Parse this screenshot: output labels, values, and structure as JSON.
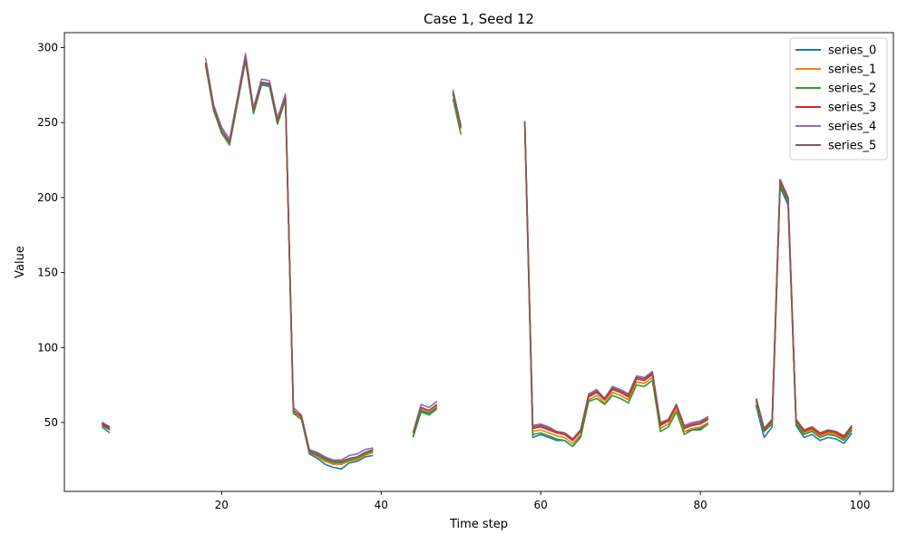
{
  "chart_data": {
    "type": "line",
    "title": "Case 1, Seed 12",
    "xlabel": "Time step",
    "ylabel": "Value",
    "xlim": [
      0.3,
      104.2
    ],
    "ylim": [
      4,
      310
    ],
    "xticks": [
      20,
      40,
      60,
      80,
      100
    ],
    "yticks": [
      50,
      100,
      150,
      200,
      250,
      300
    ],
    "grid": false,
    "legend_position": "top-right",
    "colors": [
      "#1f77b4",
      "#ff7f0e",
      "#2ca02c",
      "#d62728",
      "#9467bd",
      "#8c564b"
    ],
    "x": [
      5,
      6,
      7,
      8,
      9,
      10,
      11,
      12,
      13,
      14,
      15,
      16,
      17,
      18,
      19,
      20,
      21,
      22,
      23,
      24,
      25,
      26,
      27,
      28,
      29,
      30,
      31,
      32,
      33,
      34,
      35,
      36,
      37,
      38,
      39,
      40,
      41,
      42,
      43,
      44,
      45,
      46,
      47,
      48,
      49,
      50,
      51,
      52,
      53,
      54,
      55,
      56,
      57,
      58,
      59,
      60,
      61,
      62,
      63,
      64,
      65,
      66,
      67,
      68,
      69,
      70,
      71,
      72,
      73,
      74,
      75,
      76,
      77,
      78,
      79,
      80,
      81,
      82,
      83,
      84,
      85,
      86,
      87,
      88,
      89,
      90,
      91,
      92,
      93,
      94,
      95,
      96,
      97,
      98,
      99
    ],
    "base": [
      48,
      45,
      null,
      null,
      null,
      null,
      null,
      null,
      null,
      null,
      null,
      null,
      null,
      289,
      259,
      244,
      236,
      264,
      292,
      257,
      276,
      275,
      250,
      266,
      57,
      53,
      30,
      28,
      25,
      23,
      23,
      25,
      26,
      29,
      31,
      null,
      null,
      null,
      null,
      42,
      59,
      57,
      61,
      null,
      269,
      246,
      null,
      null,
      null,
      null,
      null,
      null,
      null,
      249,
      45,
      46,
      44,
      42,
      41,
      37,
      43,
      66,
      69,
      64,
      71,
      69,
      66,
      78,
      77,
      81,
      47,
      50,
      60,
      45,
      47,
      48,
      51,
      null,
      null,
      null,
      null,
      null,
      64,
      44,
      50,
      210,
      198,
      50,
      43,
      45,
      41,
      43,
      42,
      39,
      46
    ],
    "series": [
      {
        "name": "series_0",
        "offsets": [
          0,
          0,
          0,
          0,
          0,
          0,
          0,
          0,
          0,
          0,
          0,
          0,
          0,
          0,
          0,
          0,
          0,
          0,
          0,
          0,
          0,
          0,
          0,
          0,
          0,
          0,
          -1,
          -2,
          -3,
          -3,
          -4,
          -2,
          -2,
          -2,
          -3,
          0,
          0,
          0,
          0,
          -2,
          -1,
          -1,
          -1,
          0,
          0,
          0,
          0,
          0,
          0,
          0,
          0,
          0,
          0,
          0,
          -5,
          -4,
          -4,
          -4,
          -3,
          -3,
          -2,
          -1,
          -1,
          -1,
          -1,
          -1,
          -1,
          -1,
          -1,
          -1,
          -1,
          -1,
          -1,
          -1,
          -2,
          -2,
          -2,
          0,
          0,
          0,
          0,
          0,
          -3,
          -4,
          -3,
          -3,
          -3,
          -2,
          -3,
          -3,
          -3,
          -3,
          -3,
          -3,
          -3
        ]
      },
      {
        "name": "series_1",
        "offsets": [
          1,
          1,
          0,
          0,
          0,
          0,
          0,
          0,
          0,
          0,
          0,
          0,
          0,
          0,
          0,
          0,
          0,
          0,
          0,
          0,
          1,
          1,
          0,
          1,
          0,
          0,
          0,
          -1,
          -1,
          -1,
          -1,
          -1,
          -1,
          -1,
          -1,
          0,
          0,
          0,
          0,
          -1,
          0,
          0,
          0,
          0,
          0,
          0,
          0,
          0,
          0,
          0,
          0,
          0,
          0,
          0,
          -1,
          -1,
          -1,
          -1,
          -1,
          -1,
          -1,
          -1,
          -1,
          -1,
          -1,
          -1,
          -1,
          -1,
          -1,
          -1,
          -1,
          -1,
          -1,
          -1,
          -1,
          -1,
          -1,
          0,
          0,
          0,
          0,
          0,
          0,
          0,
          0,
          0,
          0,
          0,
          0,
          0,
          0,
          0,
          0,
          0,
          0
        ]
      },
      {
        "name": "series_2",
        "offsets": [
          -1,
          -2,
          0,
          0,
          0,
          0,
          0,
          0,
          0,
          0,
          0,
          0,
          0,
          -1,
          -1,
          -1,
          -1,
          -1,
          -1,
          -1,
          -1,
          -1,
          -1,
          -1,
          -1,
          -1,
          0,
          0,
          0,
          0,
          0,
          0,
          0,
          0,
          0,
          0,
          0,
          0,
          0,
          -2,
          -2,
          -2,
          -2,
          0,
          -3,
          -4,
          0,
          0,
          0,
          0,
          0,
          0,
          0,
          0,
          -3,
          -3,
          -3,
          -3,
          -3,
          -3,
          -3,
          -2,
          -3,
          -2,
          -3,
          -3,
          -3,
          -3,
          -3,
          -3,
          -3,
          -3,
          -3,
          -3,
          -2,
          -3,
          -2,
          0,
          0,
          0,
          0,
          0,
          -2,
          0,
          -1,
          -1,
          -1,
          -1,
          -1,
          -1,
          -1,
          -1,
          -1,
          -1,
          -1
        ]
      },
      {
        "name": "series_3",
        "offsets": [
          1,
          1,
          0,
          0,
          0,
          0,
          0,
          0,
          0,
          0,
          0,
          0,
          0,
          1,
          1,
          1,
          1,
          1,
          1,
          1,
          1,
          1,
          1,
          1,
          1,
          1,
          1,
          1,
          1,
          1,
          1,
          1,
          1,
          1,
          1,
          0,
          0,
          0,
          0,
          1,
          1,
          1,
          1,
          0,
          1,
          1,
          0,
          0,
          0,
          0,
          0,
          0,
          0,
          1,
          1,
          1,
          1,
          1,
          1,
          1,
          1,
          1,
          1,
          1,
          1,
          1,
          1,
          1,
          1,
          1,
          1,
          1,
          1,
          1,
          1,
          1,
          1,
          0,
          0,
          0,
          0,
          0,
          1,
          1,
          1,
          1,
          1,
          1,
          1,
          1,
          1,
          1,
          1,
          1,
          1
        ]
      },
      {
        "name": "series_4",
        "offsets": [
          2,
          2,
          0,
          0,
          0,
          0,
          0,
          0,
          0,
          0,
          0,
          0,
          0,
          4,
          3,
          3,
          3,
          3,
          4,
          3,
          3,
          3,
          3,
          3,
          3,
          2,
          2,
          2,
          2,
          2,
          2,
          3,
          3,
          3,
          2,
          0,
          0,
          0,
          0,
          1,
          3,
          3,
          3,
          0,
          3,
          2,
          0,
          0,
          0,
          0,
          0,
          0,
          0,
          2,
          3,
          3,
          3,
          2,
          2,
          2,
          2,
          3,
          3,
          2,
          3,
          3,
          3,
          3,
          3,
          3,
          3,
          2,
          2,
          3,
          3,
          3,
          3,
          0,
          0,
          0,
          0,
          0,
          2,
          2,
          2,
          2,
          2,
          2,
          2,
          2,
          2,
          2,
          2,
          2,
          2
        ]
      },
      {
        "name": "series_5",
        "offsets": [
          2,
          2,
          0,
          0,
          0,
          0,
          0,
          0,
          0,
          0,
          0,
          0,
          0,
          1,
          1,
          1,
          1,
          1,
          1,
          1,
          1,
          1,
          1,
          1,
          1,
          1,
          1,
          1,
          1,
          1,
          1,
          1,
          1,
          1,
          1,
          0,
          0,
          0,
          0,
          1,
          1,
          1,
          1,
          0,
          1,
          1,
          0,
          0,
          0,
          0,
          0,
          0,
          0,
          2,
          2,
          2,
          2,
          2,
          2,
          2,
          2,
          2,
          2,
          2,
          2,
          2,
          2,
          2,
          2,
          2,
          2,
          2,
          2,
          2,
          2,
          2,
          2,
          0,
          0,
          0,
          0,
          0,
          2,
          2,
          2,
          2,
          2,
          2,
          2,
          2,
          2,
          2,
          2,
          2,
          2
        ]
      }
    ]
  }
}
